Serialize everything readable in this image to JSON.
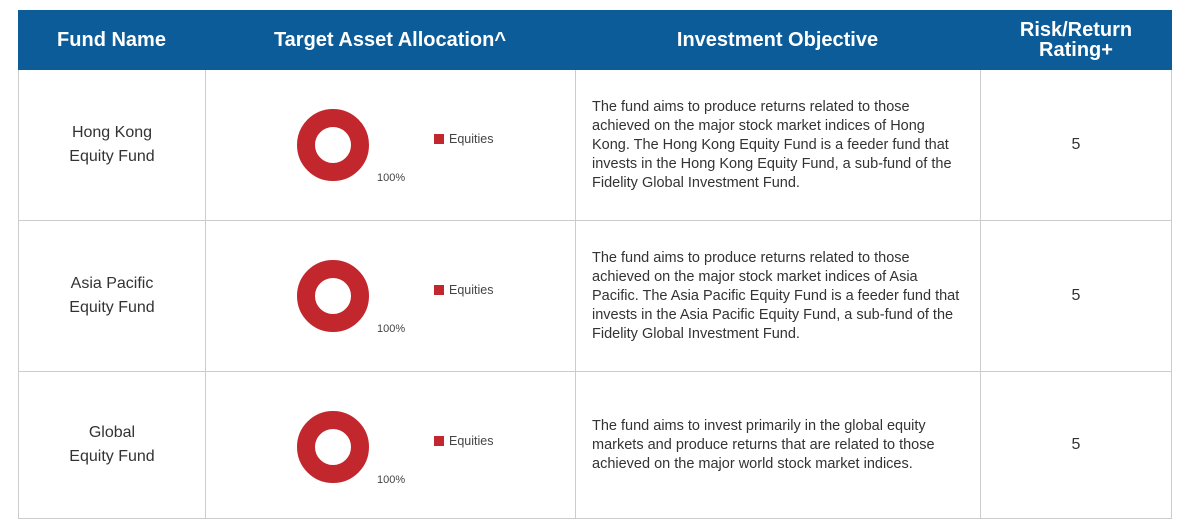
{
  "header": [
    "Fund Name",
    "Target Asset Allocation^",
    "Investment Objective",
    "Risk/Return Rating+"
  ],
  "rows": [
    {
      "name_lines": [
        "Hong Kong",
        "Equity Fund"
      ],
      "allocation": {
        "type": "pie",
        "categories": [
          "Equities"
        ],
        "values": [
          100
        ],
        "value_labels": [
          "100%"
        ],
        "colors": [
          "#c1272d"
        ]
      },
      "objective": "The fund aims to produce returns related to those achieved on the major stock market indices of Hong Kong. The Hong Kong Equity Fund is a feeder fund that invests in the Hong Kong Equity Fund, a sub-fund of the Fidelity Global Investment Fund.",
      "rating": "5"
    },
    {
      "name_lines": [
        "Asia Pacific",
        "Equity Fund"
      ],
      "allocation": {
        "type": "pie",
        "categories": [
          "Equities"
        ],
        "values": [
          100
        ],
        "value_labels": [
          "100%"
        ],
        "colors": [
          "#c1272d"
        ]
      },
      "objective": "The fund aims to produce returns related to those achieved on the major stock market indices of Asia Pacific. The Asia Pacific Equity Fund is a feeder fund that invests in the Asia Pacific Equity Fund, a sub-fund of the Fidelity Global Investment Fund.",
      "rating": "5"
    },
    {
      "name_lines": [
        "Global",
        "Equity Fund"
      ],
      "allocation": {
        "type": "pie",
        "categories": [
          "Equities"
        ],
        "values": [
          100
        ],
        "value_labels": [
          "100%"
        ],
        "colors": [
          "#c1272d"
        ]
      },
      "objective": "The fund aims to invest primarily in the global equity markets and produce returns that are related to those achieved on the major world stock market indices.",
      "rating": "5"
    }
  ]
}
